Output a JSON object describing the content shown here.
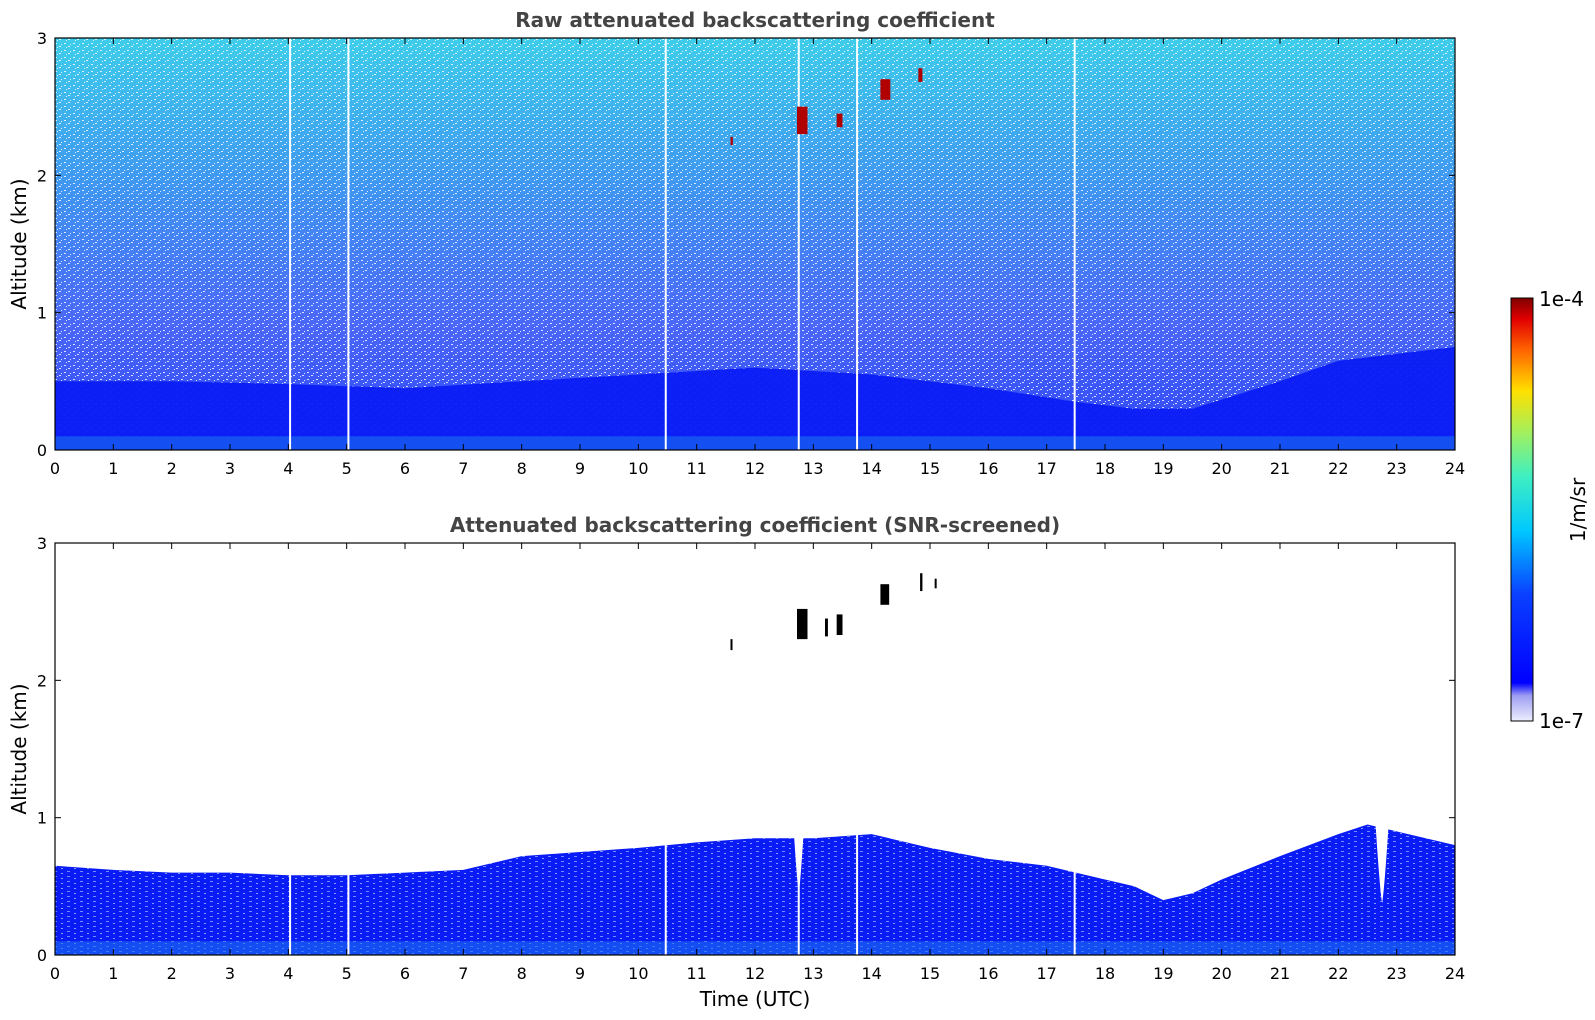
{
  "chart_data": [
    {
      "type": "heatmap",
      "panel": "top",
      "title": "Raw attenuated backscattering coefficient",
      "xlabel": "",
      "ylabel": "Altitude (km)",
      "xlim": [
        0,
        24
      ],
      "ylim": [
        0,
        3
      ],
      "xticks": [
        "0",
        "1",
        "2",
        "3",
        "4",
        "5",
        "6",
        "7",
        "8",
        "9",
        "10",
        "11",
        "12",
        "13",
        "14",
        "15",
        "16",
        "17",
        "18",
        "19",
        "20",
        "21",
        "22",
        "23",
        "24"
      ],
      "yticks": [
        "0",
        "1",
        "2",
        "3"
      ],
      "boundary_layer_top_km": [
        [
          0,
          0.5
        ],
        [
          2,
          0.5
        ],
        [
          4,
          0.48
        ],
        [
          6,
          0.45
        ],
        [
          8,
          0.5
        ],
        [
          10,
          0.55
        ],
        [
          12,
          0.6
        ],
        [
          14,
          0.55
        ],
        [
          16,
          0.45
        ],
        [
          17.5,
          0.35
        ],
        [
          18.5,
          0.3
        ],
        [
          19.5,
          0.3
        ],
        [
          21,
          0.5
        ],
        [
          22,
          0.65
        ],
        [
          24,
          0.75
        ]
      ],
      "data_gaps_utc": [
        4.03,
        5.03,
        10.47,
        12.75,
        13.75,
        17.48
      ],
      "cloud_features": [
        {
          "t_start": 12.72,
          "t_end": 12.9,
          "alt_low": 2.3,
          "alt_high": 2.5
        },
        {
          "t_start": 13.4,
          "t_end": 13.5,
          "alt_low": 2.35,
          "alt_high": 2.45
        },
        {
          "t_start": 14.15,
          "t_end": 14.32,
          "alt_low": 2.55,
          "alt_high": 2.7
        },
        {
          "t_start": 14.8,
          "t_end": 14.87,
          "alt_low": 2.68,
          "alt_high": 2.78
        },
        {
          "t_start": 11.58,
          "t_end": 11.62,
          "alt_low": 2.22,
          "alt_high": 2.28
        }
      ]
    },
    {
      "type": "heatmap",
      "panel": "bottom",
      "title": "Attenuated backscattering coefficient (SNR-screened)",
      "xlabel": "Time (UTC)",
      "ylabel": "Altitude (km)",
      "xlim": [
        0,
        24
      ],
      "ylim": [
        0,
        3
      ],
      "xticks": [
        "0",
        "1",
        "2",
        "3",
        "4",
        "5",
        "6",
        "7",
        "8",
        "9",
        "10",
        "11",
        "12",
        "13",
        "14",
        "15",
        "16",
        "17",
        "18",
        "19",
        "20",
        "21",
        "22",
        "23",
        "24"
      ],
      "yticks": [
        "0",
        "1",
        "2",
        "3"
      ],
      "aerosol_layer_top_km": [
        [
          0,
          0.65
        ],
        [
          1,
          0.62
        ],
        [
          2,
          0.6
        ],
        [
          3,
          0.6
        ],
        [
          4,
          0.58
        ],
        [
          5,
          0.58
        ],
        [
          6,
          0.6
        ],
        [
          7,
          0.62
        ],
        [
          8,
          0.72
        ],
        [
          9,
          0.75
        ],
        [
          10,
          0.78
        ],
        [
          11,
          0.82
        ],
        [
          12,
          0.85
        ],
        [
          13,
          0.85
        ],
        [
          14,
          0.88
        ],
        [
          15,
          0.78
        ],
        [
          16,
          0.7
        ],
        [
          17,
          0.65
        ],
        [
          17.5,
          0.6
        ],
        [
          18,
          0.55
        ],
        [
          18.5,
          0.5
        ],
        [
          19,
          0.4
        ],
        [
          19.5,
          0.45
        ],
        [
          20,
          0.55
        ],
        [
          21,
          0.72
        ],
        [
          22,
          0.88
        ],
        [
          22.5,
          0.95
        ],
        [
          23,
          0.9
        ],
        [
          23.5,
          0.85
        ],
        [
          24,
          0.8
        ]
      ],
      "data_gaps_utc": [
        4.03,
        5.03,
        10.47,
        12.75,
        13.75,
        17.48
      ],
      "clear_notches": [
        {
          "t": 12.75,
          "alt_low": 0.45,
          "halfwidth": 0.1
        },
        {
          "t": 22.75,
          "alt_low": 0.38,
          "halfwidth": 0.12
        }
      ],
      "cloud_features": [
        {
          "t_start": 12.72,
          "t_end": 12.9,
          "alt_low": 2.3,
          "alt_high": 2.52
        },
        {
          "t_start": 13.2,
          "t_end": 13.25,
          "alt_low": 2.32,
          "alt_high": 2.45
        },
        {
          "t_start": 13.4,
          "t_end": 13.5,
          "alt_low": 2.33,
          "alt_high": 2.48
        },
        {
          "t_start": 14.15,
          "t_end": 14.3,
          "alt_low": 2.55,
          "alt_high": 2.7
        },
        {
          "t_start": 14.83,
          "t_end": 14.87,
          "alt_low": 2.65,
          "alt_high": 2.78
        },
        {
          "t_start": 15.08,
          "t_end": 15.11,
          "alt_low": 2.67,
          "alt_high": 2.74
        },
        {
          "t_start": 11.58,
          "t_end": 11.61,
          "alt_low": 2.22,
          "alt_high": 2.3
        }
      ]
    }
  ],
  "colorbar": {
    "label": "1/m/sr",
    "max_label": "1e-4",
    "min_label": "1e-7",
    "range": [
      1e-07,
      0.0001
    ],
    "scale": "log",
    "colormap": "jet",
    "low_colors": [
      "#eeeeff",
      "#c6c6f8",
      "#9d9df2"
    ]
  },
  "colors": {
    "bg_blue": "#0a1cf5",
    "surface_blue": "#1a70f0",
    "mid_blue": "#2a4cf8",
    "cyan": "#28c8e8",
    "teal": "#30d8c0",
    "green": "#60f080",
    "red": "#b00000",
    "black": "#000000"
  }
}
